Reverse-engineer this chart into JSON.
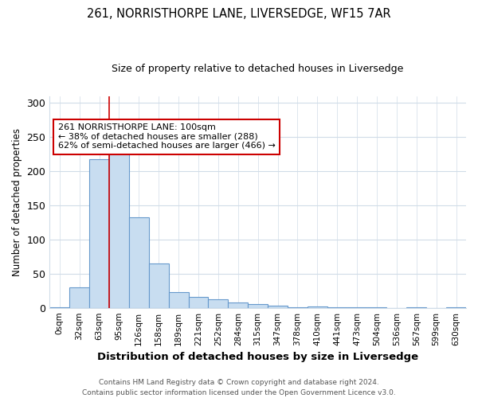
{
  "title": "261, NORRISTHORPE LANE, LIVERSEDGE, WF15 7AR",
  "subtitle": "Size of property relative to detached houses in Liversedge",
  "xlabel": "Distribution of detached houses by size in Liversedge",
  "ylabel": "Number of detached properties",
  "bar_color": "#c8ddf0",
  "bar_edge_color": "#6699cc",
  "categories": [
    "0sqm",
    "32sqm",
    "63sqm",
    "95sqm",
    "126sqm",
    "158sqm",
    "189sqm",
    "221sqm",
    "252sqm",
    "284sqm",
    "315sqm",
    "347sqm",
    "378sqm",
    "410sqm",
    "441sqm",
    "473sqm",
    "504sqm",
    "536sqm",
    "567sqm",
    "599sqm",
    "630sqm"
  ],
  "values": [
    1,
    30,
    218,
    245,
    133,
    65,
    23,
    16,
    12,
    8,
    5,
    3,
    1,
    2,
    1,
    1,
    1,
    0,
    1,
    0,
    1
  ],
  "vline_index": 3,
  "vline_color": "#cc0000",
  "annotation_text": "261 NORRISTHORPE LANE: 100sqm\n← 38% of detached houses are smaller (288)\n62% of semi-detached houses are larger (466) →",
  "annotation_box_color": "white",
  "annotation_box_edgecolor": "#cc0000",
  "footnote": "Contains HM Land Registry data © Crown copyright and database right 2024.\nContains public sector information licensed under the Open Government Licence v3.0.",
  "ylim": [
    0,
    310
  ],
  "yticks": [
    0,
    50,
    100,
    150,
    200,
    250,
    300
  ],
  "bg_color": "#ffffff",
  "plot_bg_color": "#ffffff",
  "grid_color": "#d0dce8"
}
